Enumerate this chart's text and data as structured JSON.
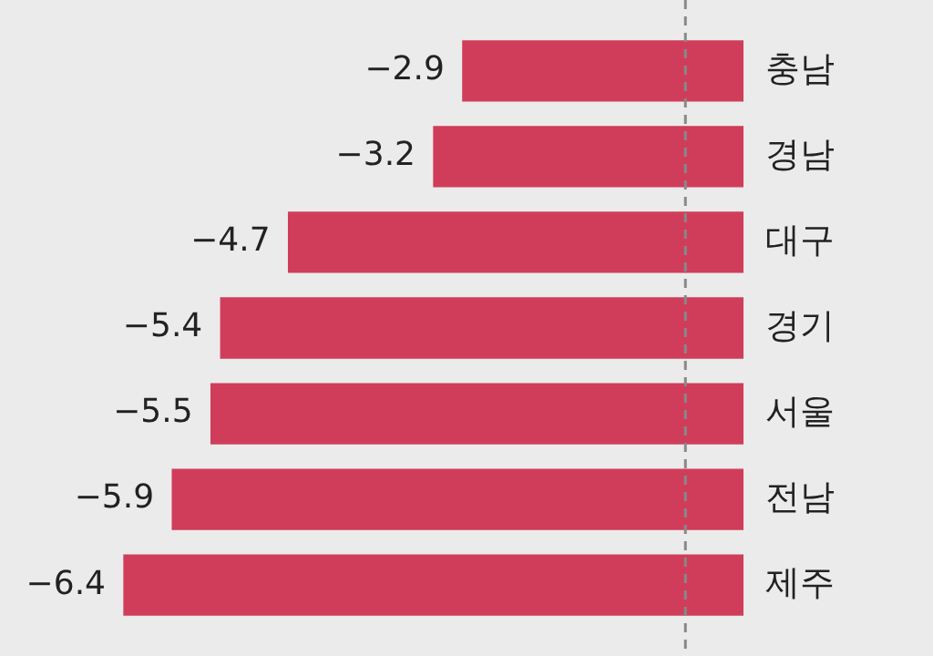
{
  "chart_data": {
    "type": "bar",
    "orientation": "horizontal",
    "categories": [
      "충남",
      "경남",
      "대구",
      "경기",
      "서울",
      "전남",
      "제주"
    ],
    "values": [
      -2.9,
      -3.2,
      -4.7,
      -5.4,
      -5.5,
      -5.9,
      -6.4
    ],
    "color": "#d03d5a",
    "data_labels": true,
    "legend": false,
    "ref_lines": [
      {
        "axis": "x",
        "value": -0.6,
        "color": "#888888",
        "line_style": "dashed"
      }
    ]
  }
}
